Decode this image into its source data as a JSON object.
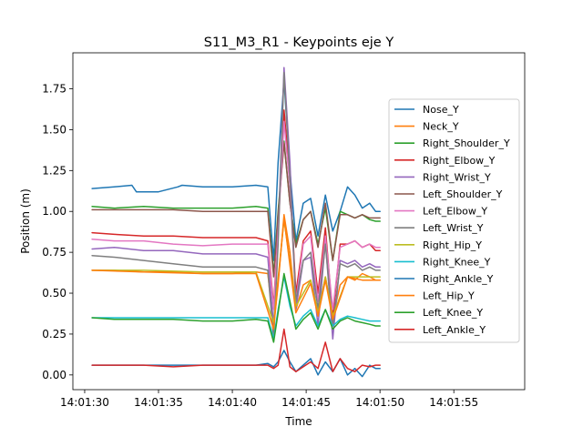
{
  "chart_data": {
    "type": "line",
    "title": "S11_M3_R1 - Keypoints eje Y",
    "xlabel": "Time",
    "ylabel": "Position (m)",
    "xlim_seconds": [
      29.2,
      59.8
    ],
    "ylim": [
      -0.09,
      1.97
    ],
    "x_ticks": [
      {
        "t": 30,
        "label": "14:01:30"
      },
      {
        "t": 35,
        "label": "14:01:35"
      },
      {
        "t": 40,
        "label": "14:01:40"
      },
      {
        "t": 45,
        "label": "14:01:45"
      },
      {
        "t": 50,
        "label": "14:01:50"
      },
      {
        "t": 55,
        "label": "14:01:55"
      }
    ],
    "y_ticks": [
      {
        "v": 0.0,
        "label": "0.00"
      },
      {
        "v": 0.25,
        "label": "0.25"
      },
      {
        "v": 0.5,
        "label": "0.50"
      },
      {
        "v": 0.75,
        "label": "0.75"
      },
      {
        "v": 1.0,
        "label": "1.00"
      },
      {
        "v": 1.25,
        "label": "1.25"
      },
      {
        "v": 1.5,
        "label": "1.50"
      },
      {
        "v": 1.75,
        "label": "1.75"
      }
    ],
    "grid": false,
    "legend_position": "right",
    "x_time_unit": "seconds after 14:01:00",
    "series": [
      {
        "name": "Nose_Y",
        "color": "#1f77b4",
        "x": [
          30.5,
          32.0,
          33.2,
          33.5,
          35.0,
          36.3,
          36.6,
          38.0,
          40.0,
          41.6,
          42.4,
          42.8,
          43.1,
          43.5,
          43.9,
          44.3,
          44.8,
          45.3,
          45.8,
          46.3,
          46.8,
          47.3,
          47.8,
          48.3,
          48.8,
          49.3,
          49.7,
          50.0
        ],
        "y": [
          1.14,
          1.15,
          1.16,
          1.12,
          1.12,
          1.15,
          1.16,
          1.15,
          1.15,
          1.16,
          1.15,
          0.7,
          1.3,
          1.8,
          1.25,
          0.82,
          1.05,
          1.08,
          0.85,
          1.1,
          0.88,
          1.0,
          1.15,
          1.1,
          1.02,
          1.05,
          1.0,
          1.0
        ]
      },
      {
        "name": "Neck_Y",
        "color": "#ff7f0e",
        "x": [
          30.5,
          32.0,
          34.0,
          36.0,
          38.0,
          40.0,
          41.6,
          42.4,
          42.8,
          43.1,
          43.5,
          43.9,
          44.3,
          44.8,
          45.3,
          45.8,
          46.3,
          46.8,
          47.3,
          47.8,
          48.3,
          48.8,
          49.3,
          49.7,
          50.0
        ],
        "y": [
          0.64,
          0.64,
          0.63,
          0.63,
          0.62,
          0.62,
          0.63,
          0.62,
          0.3,
          0.55,
          0.98,
          0.75,
          0.4,
          0.55,
          0.58,
          0.38,
          0.6,
          0.35,
          0.55,
          0.6,
          0.58,
          0.62,
          0.6,
          0.58,
          0.58
        ]
      },
      {
        "name": "Right_Shoulder_Y",
        "color": "#2ca02c",
        "x": [
          30.5,
          32.0,
          34.0,
          36.0,
          38.0,
          40.0,
          41.6,
          42.4,
          42.8,
          43.1,
          43.5,
          43.9,
          44.3,
          44.8,
          45.3,
          45.8,
          46.3,
          46.8,
          47.3,
          47.8,
          48.3,
          48.8,
          49.3,
          49.7,
          50.0
        ],
        "y": [
          1.03,
          1.02,
          1.03,
          1.02,
          1.02,
          1.02,
          1.03,
          1.02,
          0.62,
          1.0,
          1.43,
          1.05,
          0.8,
          0.95,
          1.0,
          0.8,
          1.02,
          0.7,
          1.0,
          0.98,
          0.96,
          0.98,
          0.95,
          0.94,
          0.94
        ]
      },
      {
        "name": "Right_Elbow_Y",
        "color": "#d62728",
        "x": [
          30.5,
          32.0,
          34.0,
          36.0,
          38.0,
          40.0,
          41.6,
          42.4,
          42.8,
          43.1,
          43.5,
          43.9,
          44.3,
          44.8,
          45.3,
          45.8,
          46.3,
          46.8,
          47.3,
          47.8,
          48.3,
          48.8,
          49.3,
          49.7,
          50.0
        ],
        "y": [
          0.87,
          0.86,
          0.85,
          0.85,
          0.84,
          0.84,
          0.84,
          0.82,
          0.42,
          0.9,
          1.62,
          1.2,
          0.5,
          0.82,
          0.88,
          0.5,
          0.9,
          0.35,
          0.8,
          0.8,
          0.82,
          0.78,
          0.8,
          0.76,
          0.76
        ]
      },
      {
        "name": "Right_Wrist_Y",
        "color": "#9467bd",
        "x": [
          30.5,
          32.0,
          34.0,
          36.0,
          38.0,
          40.0,
          41.6,
          42.4,
          42.8,
          43.1,
          43.5,
          43.9,
          44.3,
          44.8,
          45.3,
          45.8,
          46.3,
          46.8,
          47.3,
          47.8,
          48.3,
          48.8,
          49.3,
          49.7,
          50.0
        ],
        "y": [
          0.77,
          0.78,
          0.76,
          0.76,
          0.74,
          0.74,
          0.74,
          0.72,
          0.3,
          0.85,
          1.88,
          1.3,
          0.4,
          0.7,
          0.72,
          0.3,
          0.82,
          0.22,
          0.7,
          0.68,
          0.7,
          0.66,
          0.68,
          0.66,
          0.66
        ]
      },
      {
        "name": "Left_Shoulder_Y",
        "color": "#8c564b",
        "x": [
          30.5,
          32.0,
          34.0,
          36.0,
          38.0,
          40.0,
          41.6,
          42.4,
          42.8,
          43.1,
          43.5,
          43.9,
          44.3,
          44.8,
          45.3,
          45.8,
          46.3,
          46.8,
          47.3,
          47.8,
          48.3,
          48.8,
          49.3,
          49.7,
          50.0
        ],
        "y": [
          1.01,
          1.01,
          1.01,
          1.01,
          1.0,
          1.0,
          1.0,
          1.0,
          0.6,
          0.98,
          1.42,
          1.05,
          0.78,
          0.95,
          1.0,
          0.78,
          1.05,
          0.7,
          0.98,
          0.98,
          0.96,
          0.98,
          0.96,
          0.96,
          0.96
        ]
      },
      {
        "name": "Left_Elbow_Y",
        "color": "#e377c2",
        "x": [
          30.5,
          32.0,
          34.0,
          36.0,
          38.0,
          40.0,
          41.6,
          42.4,
          42.8,
          43.1,
          43.5,
          43.9,
          44.3,
          44.8,
          45.3,
          45.8,
          46.3,
          46.8,
          47.3,
          47.8,
          48.3,
          48.8,
          49.3,
          49.7,
          50.0
        ],
        "y": [
          0.83,
          0.82,
          0.82,
          0.8,
          0.79,
          0.8,
          0.8,
          0.8,
          0.4,
          0.88,
          1.55,
          1.15,
          0.45,
          0.8,
          0.85,
          0.45,
          0.85,
          0.4,
          0.78,
          0.8,
          0.82,
          0.78,
          0.8,
          0.78,
          0.78
        ]
      },
      {
        "name": "Left_Wrist_Y",
        "color": "#7f7f7f",
        "x": [
          30.5,
          32.0,
          34.0,
          36.0,
          38.0,
          40.0,
          41.6,
          42.4,
          42.8,
          43.1,
          43.5,
          43.9,
          44.3,
          44.8,
          45.3,
          45.8,
          46.3,
          46.8,
          47.3,
          47.8,
          48.3,
          48.8,
          49.3,
          49.7,
          50.0
        ],
        "y": [
          0.73,
          0.72,
          0.7,
          0.68,
          0.66,
          0.66,
          0.66,
          0.64,
          0.22,
          0.8,
          1.85,
          1.2,
          0.45,
          0.7,
          0.75,
          0.4,
          0.8,
          0.3,
          0.68,
          0.66,
          0.68,
          0.64,
          0.66,
          0.64,
          0.64
        ]
      },
      {
        "name": "Right_Hip_Y",
        "color": "#bcbd22",
        "x": [
          30.5,
          34.0,
          38.0,
          41.6,
          42.8,
          43.5,
          44.3,
          45.3,
          45.8,
          46.3,
          46.8,
          47.8,
          48.8,
          50.0
        ],
        "y": [
          0.64,
          0.64,
          0.63,
          0.63,
          0.32,
          0.95,
          0.42,
          0.58,
          0.38,
          0.6,
          0.36,
          0.6,
          0.6,
          0.6
        ]
      },
      {
        "name": "Right_Knee_Y",
        "color": "#17becf",
        "x": [
          30.5,
          32.0,
          34.0,
          36.0,
          38.0,
          40.0,
          41.6,
          42.4,
          42.8,
          43.1,
          43.5,
          43.9,
          44.3,
          44.8,
          45.3,
          45.8,
          46.3,
          46.8,
          47.3,
          47.8,
          48.3,
          48.8,
          49.3,
          49.7,
          50.0
        ],
        "y": [
          0.35,
          0.35,
          0.35,
          0.35,
          0.35,
          0.35,
          0.35,
          0.35,
          0.22,
          0.4,
          0.6,
          0.42,
          0.3,
          0.36,
          0.4,
          0.3,
          0.4,
          0.3,
          0.34,
          0.36,
          0.35,
          0.34,
          0.33,
          0.33,
          0.33
        ]
      },
      {
        "name": "Right_Ankle_Y",
        "color": "#1f77b4",
        "x": [
          30.5,
          32.0,
          34.0,
          36.0,
          38.0,
          40.0,
          41.6,
          42.4,
          42.8,
          43.1,
          43.5,
          43.9,
          44.3,
          44.8,
          45.3,
          45.8,
          46.3,
          46.8,
          47.3,
          47.8,
          48.3,
          48.8,
          49.3,
          49.7,
          50.0
        ],
        "y": [
          0.06,
          0.06,
          0.06,
          0.06,
          0.06,
          0.06,
          0.06,
          0.07,
          0.05,
          0.08,
          0.15,
          0.08,
          0.02,
          0.06,
          0.1,
          0.0,
          0.08,
          0.02,
          0.1,
          0.0,
          0.04,
          -0.01,
          0.06,
          0.04,
          0.04
        ]
      },
      {
        "name": "Left_Hip_Y",
        "color": "#ff7f0e",
        "x": [
          30.5,
          34.0,
          38.0,
          41.6,
          42.8,
          43.5,
          44.3,
          45.3,
          45.8,
          46.3,
          46.8,
          47.8,
          48.8,
          50.0
        ],
        "y": [
          0.64,
          0.63,
          0.62,
          0.62,
          0.28,
          0.96,
          0.38,
          0.56,
          0.36,
          0.58,
          0.34,
          0.6,
          0.58,
          0.58
        ]
      },
      {
        "name": "Left_Knee_Y",
        "color": "#2ca02c",
        "x": [
          30.5,
          32.0,
          34.0,
          36.0,
          38.0,
          40.0,
          41.6,
          42.4,
          42.8,
          43.1,
          43.5,
          43.9,
          44.3,
          44.8,
          45.3,
          45.8,
          46.3,
          46.8,
          47.3,
          47.8,
          48.3,
          48.8,
          49.3,
          49.7,
          50.0
        ],
        "y": [
          0.35,
          0.34,
          0.34,
          0.34,
          0.33,
          0.33,
          0.34,
          0.33,
          0.2,
          0.38,
          0.62,
          0.45,
          0.28,
          0.34,
          0.38,
          0.28,
          0.4,
          0.28,
          0.33,
          0.35,
          0.33,
          0.32,
          0.31,
          0.3,
          0.3
        ]
      },
      {
        "name": "Left_Ankle_Y",
        "color": "#d62728",
        "x": [
          30.5,
          32.0,
          34.0,
          36.0,
          38.0,
          40.0,
          41.6,
          42.4,
          42.8,
          43.1,
          43.5,
          43.9,
          44.3,
          44.8,
          45.3,
          45.8,
          46.3,
          46.8,
          47.3,
          47.8,
          48.3,
          48.8,
          49.3,
          49.7,
          50.0
        ],
        "y": [
          0.06,
          0.06,
          0.06,
          0.05,
          0.06,
          0.06,
          0.06,
          0.06,
          0.04,
          0.06,
          0.28,
          0.05,
          0.02,
          0.05,
          0.08,
          0.04,
          0.2,
          0.02,
          0.1,
          0.04,
          0.02,
          0.06,
          0.05,
          0.06,
          0.06
        ]
      }
    ]
  }
}
